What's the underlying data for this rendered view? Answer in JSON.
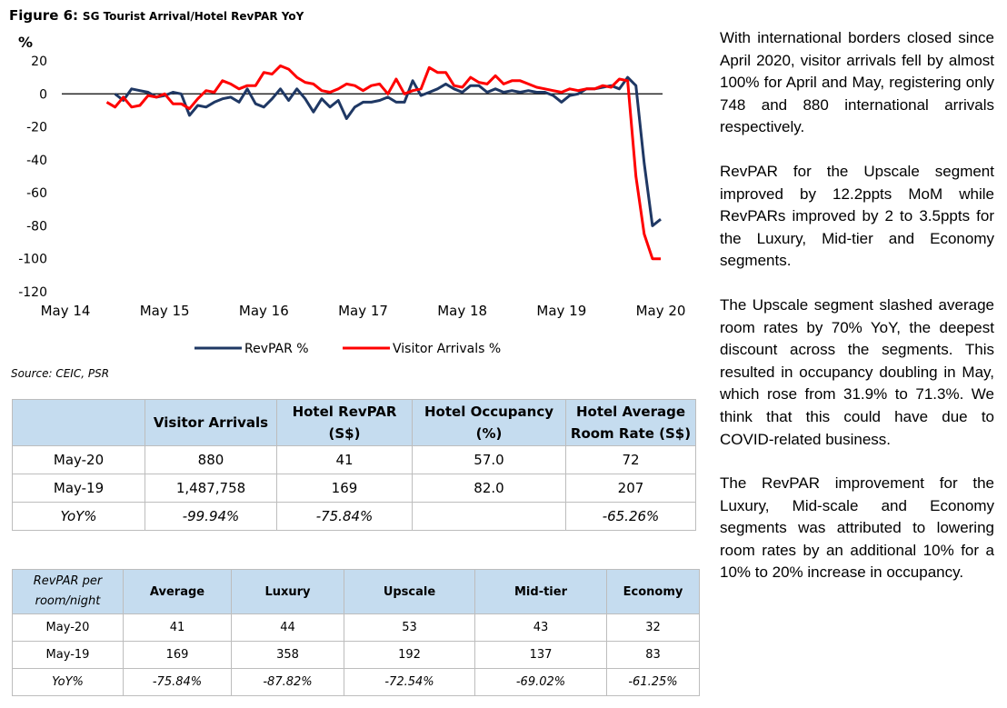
{
  "figure": {
    "number": "Figure 6:",
    "title": "SG Tourist Arrival/Hotel RevPAR YoY"
  },
  "source": "Source: CEIC, PSR",
  "chart_data": {
    "type": "line",
    "ylabel": "%",
    "ylim": [
      -120,
      20
    ],
    "yticks": [
      "20",
      "0",
      "-20",
      "-40",
      "-60",
      "-80",
      "-100",
      "-120"
    ],
    "x_tick_labels": [
      "May 14",
      "May 15",
      "May 16",
      "May 17",
      "May 18",
      "May 19",
      "May 20"
    ],
    "x_start": "May 14",
    "x_end": "May 20",
    "legend_position": "bottom",
    "series": [
      {
        "name": "RevPAR %",
        "color": "#1f3864",
        "values": [
          0,
          -4,
          3,
          2,
          1,
          -2,
          -1,
          1,
          0,
          -13,
          -7,
          -8,
          -5,
          -3,
          -2,
          -5,
          3,
          -6,
          -8,
          -3,
          3,
          -4,
          3,
          -3,
          -11,
          -3,
          -8,
          -4,
          -15,
          -8,
          -5,
          -5,
          -4,
          -2,
          -5,
          -5,
          8,
          -1,
          1,
          3,
          6,
          3,
          1,
          5,
          5,
          1,
          3,
          1,
          2,
          1,
          2,
          1,
          1,
          -1,
          -5,
          -1,
          0,
          3,
          3,
          4,
          5,
          3,
          10,
          5,
          -42,
          -80,
          -76
        ]
      },
      {
        "name": "Visitor Arrivals %",
        "color": "#ff0000",
        "values": [
          -5,
          -8,
          -2,
          -8,
          -7,
          -1,
          -2,
          0,
          -6,
          -6,
          -9,
          -3,
          2,
          1,
          8,
          6,
          3,
          5,
          5,
          13,
          12,
          17,
          15,
          10,
          7,
          6,
          2,
          1,
          3,
          6,
          5,
          2,
          5,
          6,
          0,
          9,
          0,
          2,
          3,
          16,
          13,
          13,
          5,
          4,
          10,
          7,
          6,
          11,
          6,
          8,
          8,
          6,
          4,
          3,
          2,
          1,
          3,
          2,
          3,
          3,
          5,
          4,
          9,
          8,
          -50,
          -85,
          -100,
          -100
        ]
      }
    ]
  },
  "table1": {
    "headers": [
      "",
      "Visitor Arrivals",
      "Hotel RevPAR (S$)",
      "Hotel Occupancy (%)",
      "Hotel Average Room Rate (S$)"
    ],
    "rows": [
      [
        "May-20",
        "880",
        "41",
        "57.0",
        "72"
      ],
      [
        "May-19",
        "1,487,758",
        "169",
        "82.0",
        "207"
      ],
      [
        "YoY%",
        "-99.94%",
        "-75.84%",
        "",
        "-65.26%"
      ]
    ]
  },
  "table2": {
    "headers": [
      "RevPAR per room/night",
      "Average",
      "Luxury",
      "Upscale",
      "Mid-tier",
      "Economy"
    ],
    "rows": [
      [
        "May-20",
        "41",
        "44",
        "53",
        "43",
        "32"
      ],
      [
        "May-19",
        "169",
        "358",
        "192",
        "137",
        "83"
      ],
      [
        "YoY%",
        "-75.84%",
        "-87.82%",
        "-72.54%",
        "-69.02%",
        "-61.25%"
      ]
    ]
  },
  "commentary": [
    "With international borders closed since April 2020, visitor arrivals fell by almost 100% for April and May, registering only 748 and 880 international arrivals respectively.",
    "RevPAR for the Upscale segment improved by 12.2ppts MoM while RevPARs improved by 2 to 3.5ppts for the Luxury, Mid-tier and Economy segments.",
    "The Upscale segment slashed average room rates by 70% YoY, the deepest discount across the segments. This resulted in occupancy doubling in May, which rose from 31.9% to 71.3%. We think that this could have due to COVID-related business.",
    "The RevPAR improvement for the Luxury, Mid-scale and Economy segments was attributed to lowering room rates by an additional 10% for a 10% to 20% increase in occupancy."
  ]
}
